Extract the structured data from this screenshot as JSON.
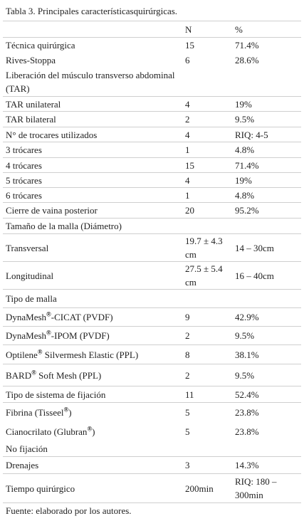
{
  "title": "Tabla 3. Principales característicasquirúrgicas.",
  "table": {
    "header": [
      null,
      "N",
      "%"
    ],
    "rows": [
      [
        "Técnica quirúrgica",
        "15",
        "71.4%"
      ],
      [
        "Rives-Stoppa",
        "6",
        "28.6%"
      ],
      [
        "Liberación del músculo transverso abdominal (TAR)",
        null,
        null
      ],
      [
        "TAR unilateral",
        "4",
        "19%"
      ],
      [
        "TAR bilateral",
        "2",
        "9.5%"
      ],
      [
        "N°  de trocares utilizados",
        "4",
        "RIQ: 4-5"
      ],
      [
        "3 trócares",
        "1",
        "4.8%"
      ],
      [
        "4 trócares",
        "15",
        "71.4%"
      ],
      [
        "5 trócares",
        "4",
        "19%"
      ],
      [
        "6 trócares",
        "1",
        "4.8%"
      ],
      [
        "Cierre de vaina posterior",
        "20",
        "95.2%"
      ],
      [
        "Tamaño de la malla (Diámetro)",
        null,
        null
      ],
      [
        "Transversal",
        "19.7 ± 4.3 cm",
        "14 – 30cm"
      ],
      [
        "Longitudinal",
        "27.5 ± 5.4 cm",
        "16 – 40cm"
      ],
      [
        "Tipo de malla",
        null,
        null
      ],
      [
        "DynaMesh®-CICAT (PVDF)",
        "9",
        "42.9%"
      ],
      [
        "DynaMesh®-IPOM (PVDF)",
        "2",
        "9.5%"
      ],
      [
        "Optilene® Silvermesh Elastic (PPL)",
        "8",
        "38.1%"
      ],
      [
        "BARD® Soft Mesh (PPL)",
        "2",
        "9.5%"
      ],
      [
        "Tipo de sistema de fijación",
        "11",
        "52.4%"
      ],
      [
        "Fibrina (Tisseel®)",
        "5",
        "23.8%"
      ],
      [
        "Cianocrilato (Glubran®)",
        "5",
        "23.8%"
      ],
      [
        "No fijación",
        null,
        null
      ],
      [
        "Drenajes",
        "3",
        "14.3%"
      ],
      [
        "Tiempo quirúrgico",
        "200min",
        "RIQ: 180 – 300min"
      ]
    ]
  },
  "footer": "Fuente: elaborado por los autores."
}
